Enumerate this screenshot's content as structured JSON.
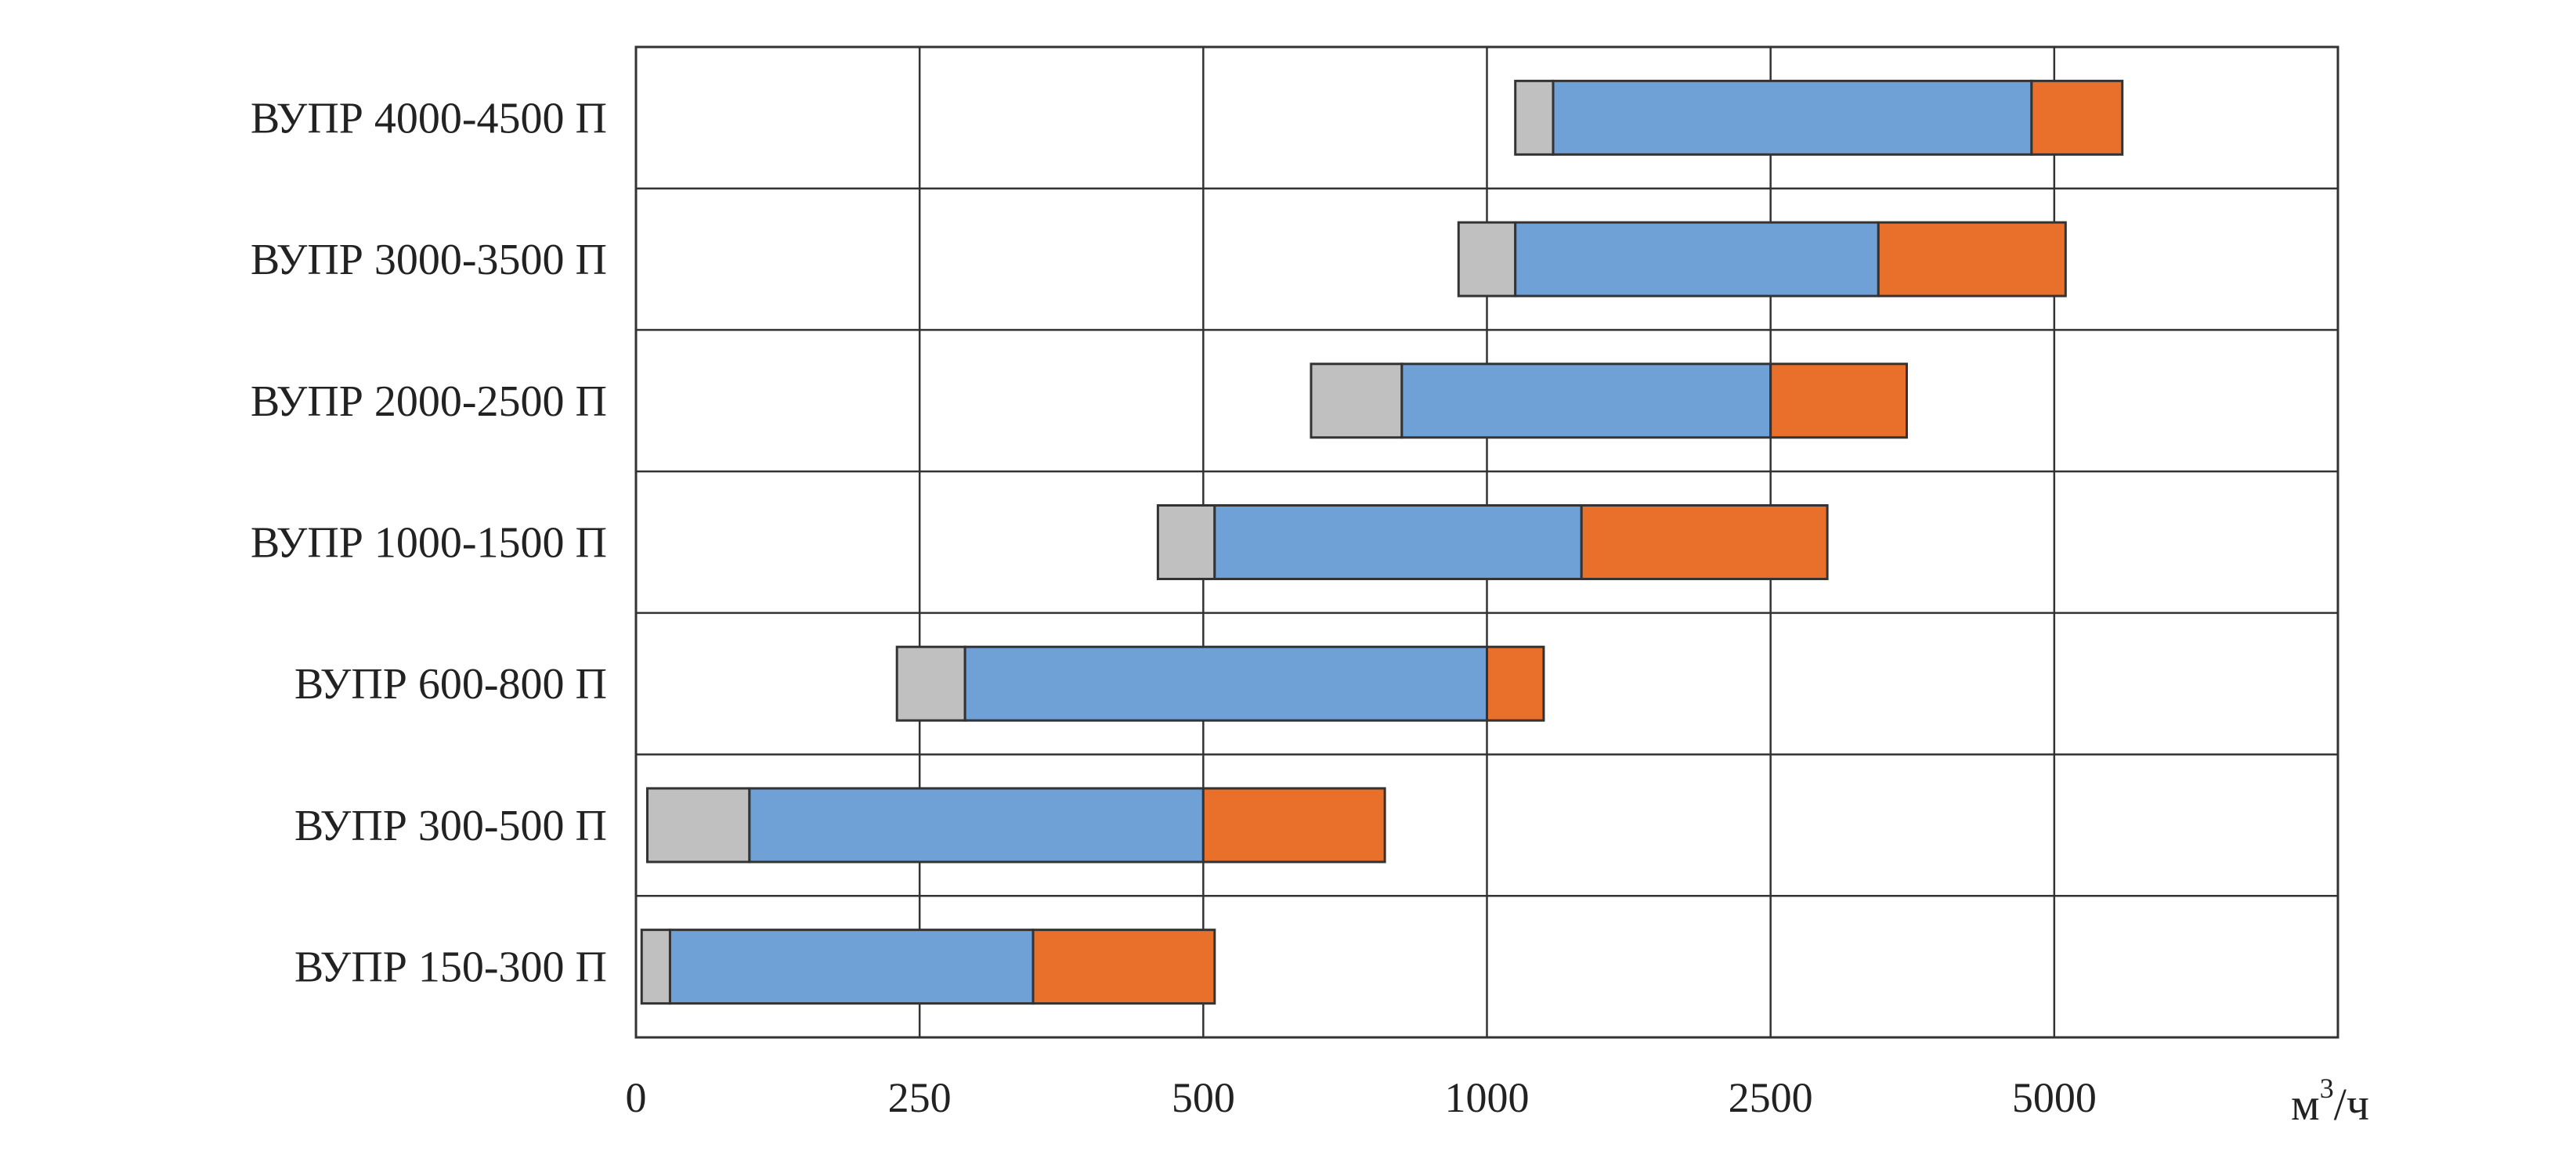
{
  "chart_data": {
    "type": "bar",
    "stacked": true,
    "orientation": "horizontal",
    "x_scale": "piecewise",
    "x_ticks": [
      0,
      250,
      500,
      1000,
      2500,
      5000
    ],
    "x_unit": {
      "base": "м",
      "sup": "3",
      "rest": "/ч"
    },
    "grid": true,
    "categories": [
      "ВУПР 4000-4500 П",
      "ВУПР 3000-3500 П",
      "ВУПР 2000-2500 П",
      "ВУПР 1000-1500 П",
      "ВУПР 600-800 П",
      "ВУПР 300-500 П",
      "ВУПР 150-300 П"
    ],
    "series_colors": [
      "#bfc0bf",
      "#6fa0d6",
      "#e9702b"
    ],
    "bars": [
      {
        "start": 1150,
        "segments": [
          1150,
          1350,
          4800,
          5600
        ]
      },
      {
        "start": 950,
        "segments": [
          950,
          1150,
          3450,
          5100
        ]
      },
      {
        "start": 690,
        "segments": [
          690,
          850,
          2500,
          3700
        ]
      },
      {
        "start": 460,
        "segments": [
          460,
          520,
          1500,
          3000
        ]
      },
      {
        "start": 230,
        "segments": [
          230,
          290,
          1000,
          1300
        ]
      },
      {
        "start": 10,
        "segments": [
          10,
          100,
          500,
          820
        ]
      },
      {
        "start": 5,
        "segments": [
          5,
          30,
          350,
          520
        ]
      }
    ]
  }
}
